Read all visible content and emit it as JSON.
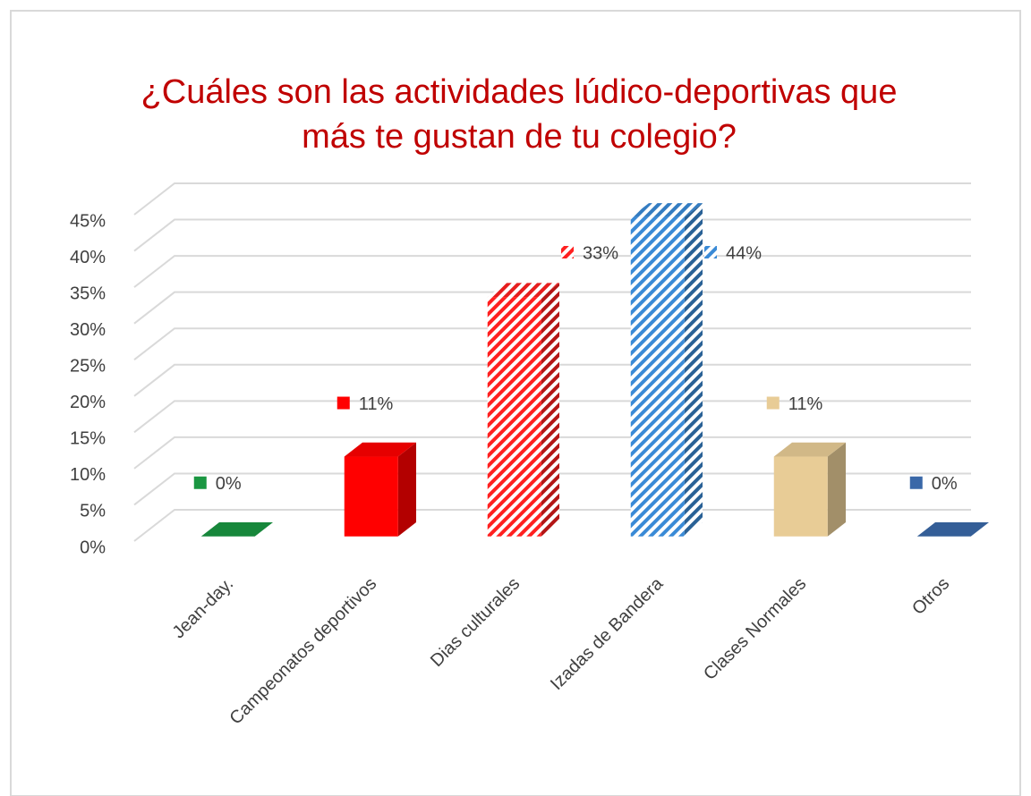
{
  "chart_data": {
    "type": "bar3d",
    "title": "¿Cuáles son las actividades lúdico-deportivas que más te gustan de tu colegio?",
    "categories": [
      "Jean-day.",
      "Campeonatos deportivos",
      "Dias culturales",
      "Izadas de Bandera",
      "Clases Normales",
      "Otros"
    ],
    "values": [
      0,
      11,
      33,
      44,
      11,
      0
    ],
    "value_labels": [
      "0%",
      "11%",
      "33%",
      "44%",
      "11%",
      "0%"
    ],
    "colors": [
      "#1a9641",
      "#ff0000",
      "#ff2020",
      "#3a8ad6",
      "#e8cc96",
      "#3a68a8"
    ],
    "hatch": [
      false,
      false,
      true,
      true,
      false,
      false
    ],
    "ylim": [
      0,
      45
    ],
    "yticks": [
      {
        "value": 0,
        "label": "0%"
      },
      {
        "value": 5,
        "label": "5%"
      },
      {
        "value": 10,
        "label": "10%"
      },
      {
        "value": 15,
        "label": "15%"
      },
      {
        "value": 20,
        "label": "20%"
      },
      {
        "value": 25,
        "label": "25%"
      },
      {
        "value": 30,
        "label": "30%"
      },
      {
        "value": 35,
        "label": "35%"
      },
      {
        "value": 40,
        "label": "40%"
      },
      {
        "value": 45,
        "label": "45%"
      }
    ],
    "grid": true
  }
}
